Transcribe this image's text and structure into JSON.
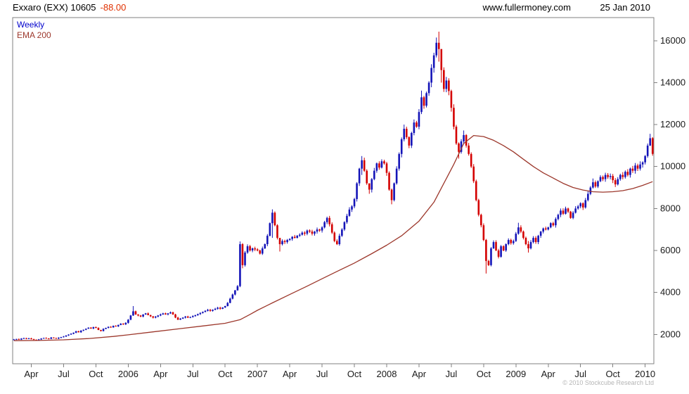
{
  "header": {
    "symbol_title": "Exxaro (EXX) 10605",
    "change": "-88.00",
    "website": "www.fullermoney.com",
    "date": "25 Jan 2010"
  },
  "legend": {
    "weekly": "Weekly",
    "ema": "EMA 200"
  },
  "footer": {
    "copyright": "© 2010 Stockcube Research Ltd"
  },
  "colors": {
    "up": "#1414b8",
    "down": "#d40000",
    "ema": "#9c372b",
    "axis": "#808080",
    "text": "#1a1a1a",
    "change": "#e03000",
    "weekly_label": "#0000cc",
    "copyright": "#b5b5b5"
  },
  "chart_data": {
    "type": "candlestick",
    "title": "Exxaro (EXX) 10605 -88.00",
    "frequency": "Weekly",
    "overlay": "EMA 200",
    "last_price": 10605,
    "change": -88.0,
    "ylim": [
      600,
      17100
    ],
    "y_ticks": [
      2000,
      4000,
      6000,
      8000,
      10000,
      12000,
      14000,
      16000
    ],
    "x_ticks": [
      {
        "label": "Apr",
        "week": 7
      },
      {
        "label": "Jul",
        "week": 20
      },
      {
        "label": "Oct",
        "week": 33
      },
      {
        "label": "2006",
        "week": 46
      },
      {
        "label": "Apr",
        "week": 59
      },
      {
        "label": "Jul",
        "week": 72
      },
      {
        "label": "Oct",
        "week": 85
      },
      {
        "label": "2007",
        "week": 98
      },
      {
        "label": "Apr",
        "week": 111
      },
      {
        "label": "Jul",
        "week": 124
      },
      {
        "label": "Oct",
        "week": 137
      },
      {
        "label": "2008",
        "week": 150
      },
      {
        "label": "Apr",
        "week": 163
      },
      {
        "label": "Jul",
        "week": 176
      },
      {
        "label": "Oct",
        "week": 189
      },
      {
        "label": "2009",
        "week": 202
      },
      {
        "label": "Apr",
        "week": 215
      },
      {
        "label": "Jul",
        "week": 228
      },
      {
        "label": "Oct",
        "week": 241
      },
      {
        "label": "2010",
        "week": 254
      }
    ],
    "first_open": 1740,
    "weekly_closes": [
      1760,
      1780,
      1750,
      1800,
      1820,
      1790,
      1810,
      1770,
      1740,
      1720,
      1760,
      1800,
      1830,
      1810,
      1790,
      1850,
      1830,
      1800,
      1840,
      1870,
      1900,
      1950,
      1990,
      2030,
      2080,
      2150,
      2100,
      2180,
      2220,
      2270,
      2320,
      2280,
      2350,
      2310,
      2210,
      2160,
      2260,
      2310,
      2360,
      2330,
      2410,
      2380,
      2450,
      2510,
      2480,
      2550,
      2700,
      2900,
      3100,
      2950,
      2900,
      2850,
      2950,
      3000,
      2920,
      2860,
      2800,
      2850,
      2900,
      2950,
      3000,
      2950,
      3000,
      3050,
      2950,
      2800,
      2700,
      2750,
      2800,
      2850,
      2800,
      2820,
      2870,
      2920,
      2970,
      3020,
      3070,
      3120,
      3170,
      3120,
      3170,
      3220,
      3270,
      3220,
      3280,
      3350,
      3500,
      3700,
      3900,
      4100,
      4300,
      6300,
      5300,
      5900,
      6200,
      6000,
      6100,
      6050,
      6000,
      5850,
      6100,
      6300,
      6700,
      7300,
      7800,
      7200,
      6600,
      6300,
      6450,
      6400,
      6500,
      6550,
      6650,
      6600,
      6700,
      6750,
      6850,
      6800,
      6950,
      6900,
      6800,
      6900,
      7000,
      6950,
      7100,
      7350,
      7550,
      7250,
      6850,
      6450,
      6300,
      6700,
      7000,
      7350,
      7650,
      7950,
      8100,
      8450,
      9200,
      9900,
      10300,
      9800,
      9200,
      8900,
      9400,
      9800,
      10150,
      9950,
      10250,
      10150,
      9700,
      8900,
      8400,
      9200,
      9900,
      10600,
      11300,
      11800,
      11400,
      11000,
      11600,
      12100,
      11900,
      12600,
      13300,
      12900,
      13500,
      14000,
      14700,
      15300,
      15900,
      15600,
      14600,
      13700,
      14100,
      13600,
      12800,
      11900,
      11100,
      10700,
      11200,
      11500,
      11000,
      10600,
      10000,
      9300,
      8400,
      7700,
      7200,
      6500,
      5500,
      5300,
      6100,
      6400,
      6000,
      5700,
      6200,
      6000,
      6300,
      6500,
      6350,
      6450,
      6800,
      7100,
      6900,
      6600,
      6300,
      6100,
      6400,
      6600,
      6400,
      6700,
      6900,
      7050,
      7000,
      7100,
      7300,
      7200,
      7500,
      7700,
      7900,
      7750,
      8000,
      7850,
      7550,
      7800,
      8000,
      8100,
      8250,
      8050,
      8400,
      8700,
      9000,
      9250,
      9050,
      9300,
      9500,
      9400,
      9600,
      9500,
      9550,
      9350,
      9150,
      9400,
      9600,
      9500,
      9750,
      9600,
      9900,
      9800,
      10050,
      9900,
      10100,
      10200,
      10500,
      11000,
      11350,
      10605
    ],
    "hl_overrides": {
      "48": [
        3350,
        2880
      ],
      "91": [
        6430,
        4250
      ],
      "92": [
        6350,
        5150
      ],
      "104": [
        7960,
        6600
      ],
      "107": [
        6550,
        5950
      ],
      "140": [
        10500,
        9600
      ],
      "143": [
        9150,
        8700
      ],
      "152": [
        8950,
        8200
      ],
      "157": [
        12000,
        11200
      ],
      "164": [
        13620,
        12500
      ],
      "170": [
        16150,
        15200
      ],
      "171": [
        16430,
        15000
      ],
      "172": [
        15600,
        14000
      ],
      "179": [
        11150,
        10380
      ],
      "181": [
        11720,
        11060
      ],
      "190": [
        6550,
        4900
      ],
      "203": [
        7320,
        6750
      ],
      "207": [
        6450,
        5900
      ],
      "233": [
        9430,
        8950
      ],
      "256": [
        11560,
        10980
      ]
    },
    "ema_points": [
      [
        0,
        1700
      ],
      [
        10,
        1710
      ],
      [
        20,
        1740
      ],
      [
        30,
        1800
      ],
      [
        40,
        1900
      ],
      [
        46,
        1980
      ],
      [
        56,
        2120
      ],
      [
        66,
        2260
      ],
      [
        76,
        2400
      ],
      [
        85,
        2530
      ],
      [
        91,
        2700
      ],
      [
        95,
        2950
      ],
      [
        98,
        3150
      ],
      [
        104,
        3500
      ],
      [
        111,
        3900
      ],
      [
        118,
        4300
      ],
      [
        124,
        4650
      ],
      [
        130,
        5000
      ],
      [
        137,
        5400
      ],
      [
        144,
        5850
      ],
      [
        150,
        6250
      ],
      [
        156,
        6700
      ],
      [
        163,
        7400
      ],
      [
        169,
        8300
      ],
      [
        173,
        9200
      ],
      [
        177,
        10100
      ],
      [
        181,
        11100
      ],
      [
        185,
        11480
      ],
      [
        189,
        11430
      ],
      [
        193,
        11250
      ],
      [
        197,
        11000
      ],
      [
        201,
        10700
      ],
      [
        205,
        10350
      ],
      [
        209,
        10000
      ],
      [
        213,
        9700
      ],
      [
        217,
        9450
      ],
      [
        221,
        9200
      ],
      [
        225,
        9000
      ],
      [
        229,
        8880
      ],
      [
        233,
        8800
      ],
      [
        237,
        8780
      ],
      [
        241,
        8800
      ],
      [
        245,
        8850
      ],
      [
        249,
        8950
      ],
      [
        253,
        9100
      ],
      [
        257,
        9280
      ]
    ]
  }
}
